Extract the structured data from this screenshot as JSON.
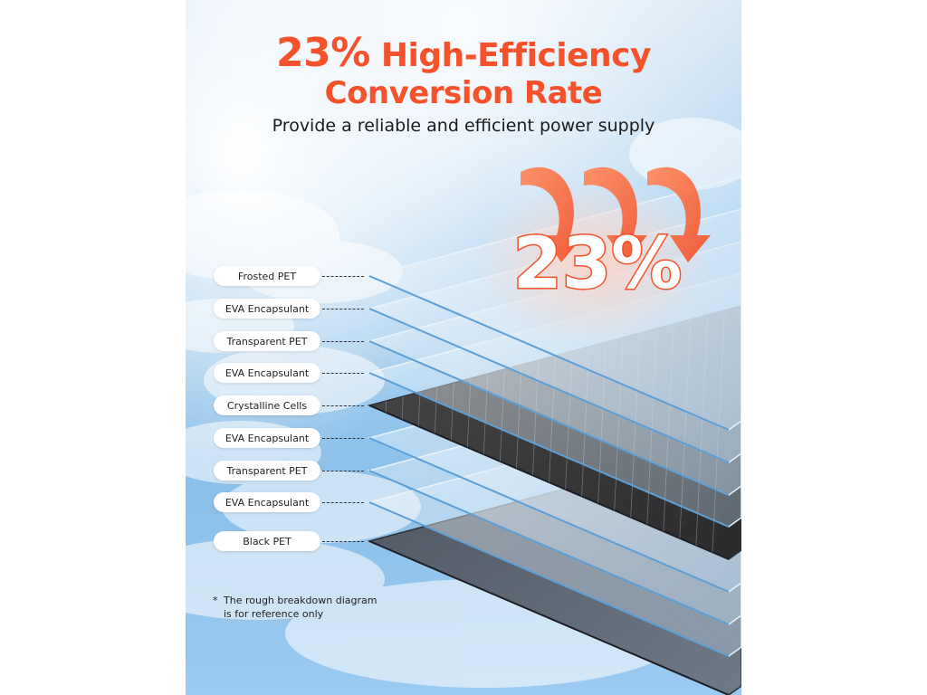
{
  "header": {
    "title_percent": "23%",
    "title_line1_rest": "High-Efficiency",
    "title_line2": "Conversion Rate",
    "subtitle": "Provide a reliable and efficient power supply"
  },
  "graphic": {
    "efficiency_badge": "23%",
    "arrow_icon": "curved-down-arrow-icon"
  },
  "layers": [
    "Frosted PET",
    "EVA Encapsulant",
    "Transparent PET",
    "EVA Encapsulant",
    "Crystalline Cells",
    "EVA Encapsulant",
    "Transparent PET",
    "EVA Encapsulant",
    "Black PET"
  ],
  "footnote": {
    "marker": "*",
    "line1": "The rough breakdown diagram",
    "line2": "is for reference only"
  },
  "colors": {
    "accent": "#f5512a",
    "sky": "#8fc3ea"
  }
}
